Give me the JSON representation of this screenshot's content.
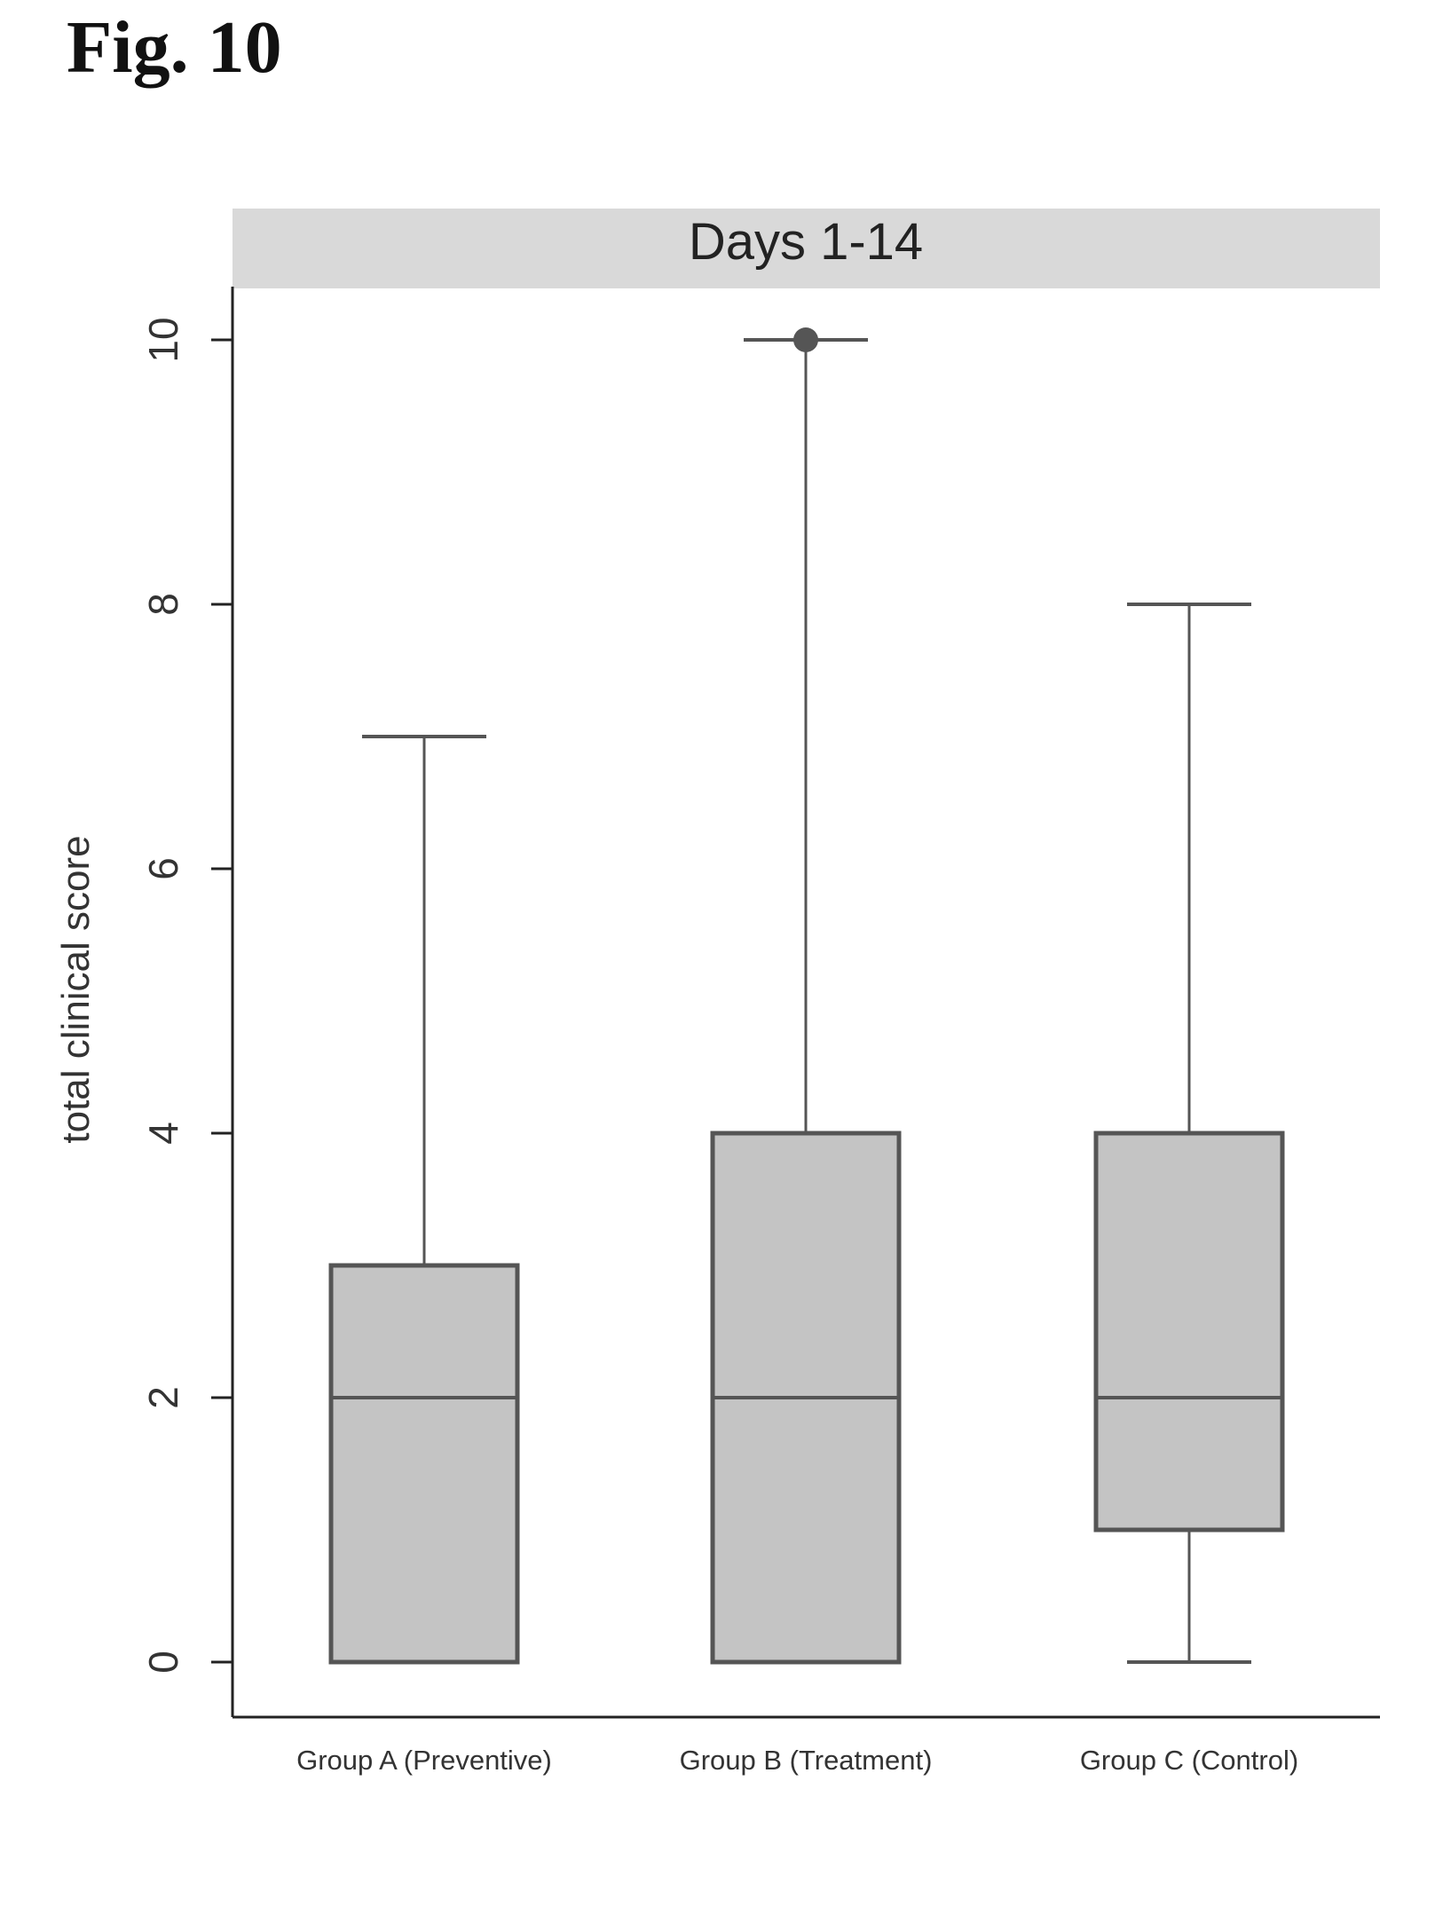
{
  "figure_label": "Fig. 10",
  "colors": {
    "panel_strip": "#d9d9d9",
    "box_fill": "#c4c4c4",
    "box_stroke": "#555555",
    "whisker": "#555555",
    "axis": "#222222",
    "text": "#333333"
  },
  "chart_data": {
    "type": "boxplot",
    "panel_title": "Days 1-14",
    "ylabel": "total clinical score",
    "xlabel": "",
    "ylim": [
      0,
      10
    ],
    "yticks": [
      0,
      2,
      4,
      6,
      8,
      10
    ],
    "grid": false,
    "categories": [
      "Group A (Preventive)",
      "Group B (Treatment)",
      "Group C (Control)"
    ],
    "boxes": [
      {
        "min": 0,
        "q1": 0,
        "median": 2,
        "q3": 3,
        "max": 7,
        "outliers": []
      },
      {
        "min": 0,
        "q1": 0,
        "median": 2,
        "q3": 4,
        "max": 10,
        "outliers": [
          10
        ]
      },
      {
        "min": 0,
        "q1": 1,
        "median": 2,
        "q3": 4,
        "max": 8,
        "outliers": []
      }
    ]
  }
}
